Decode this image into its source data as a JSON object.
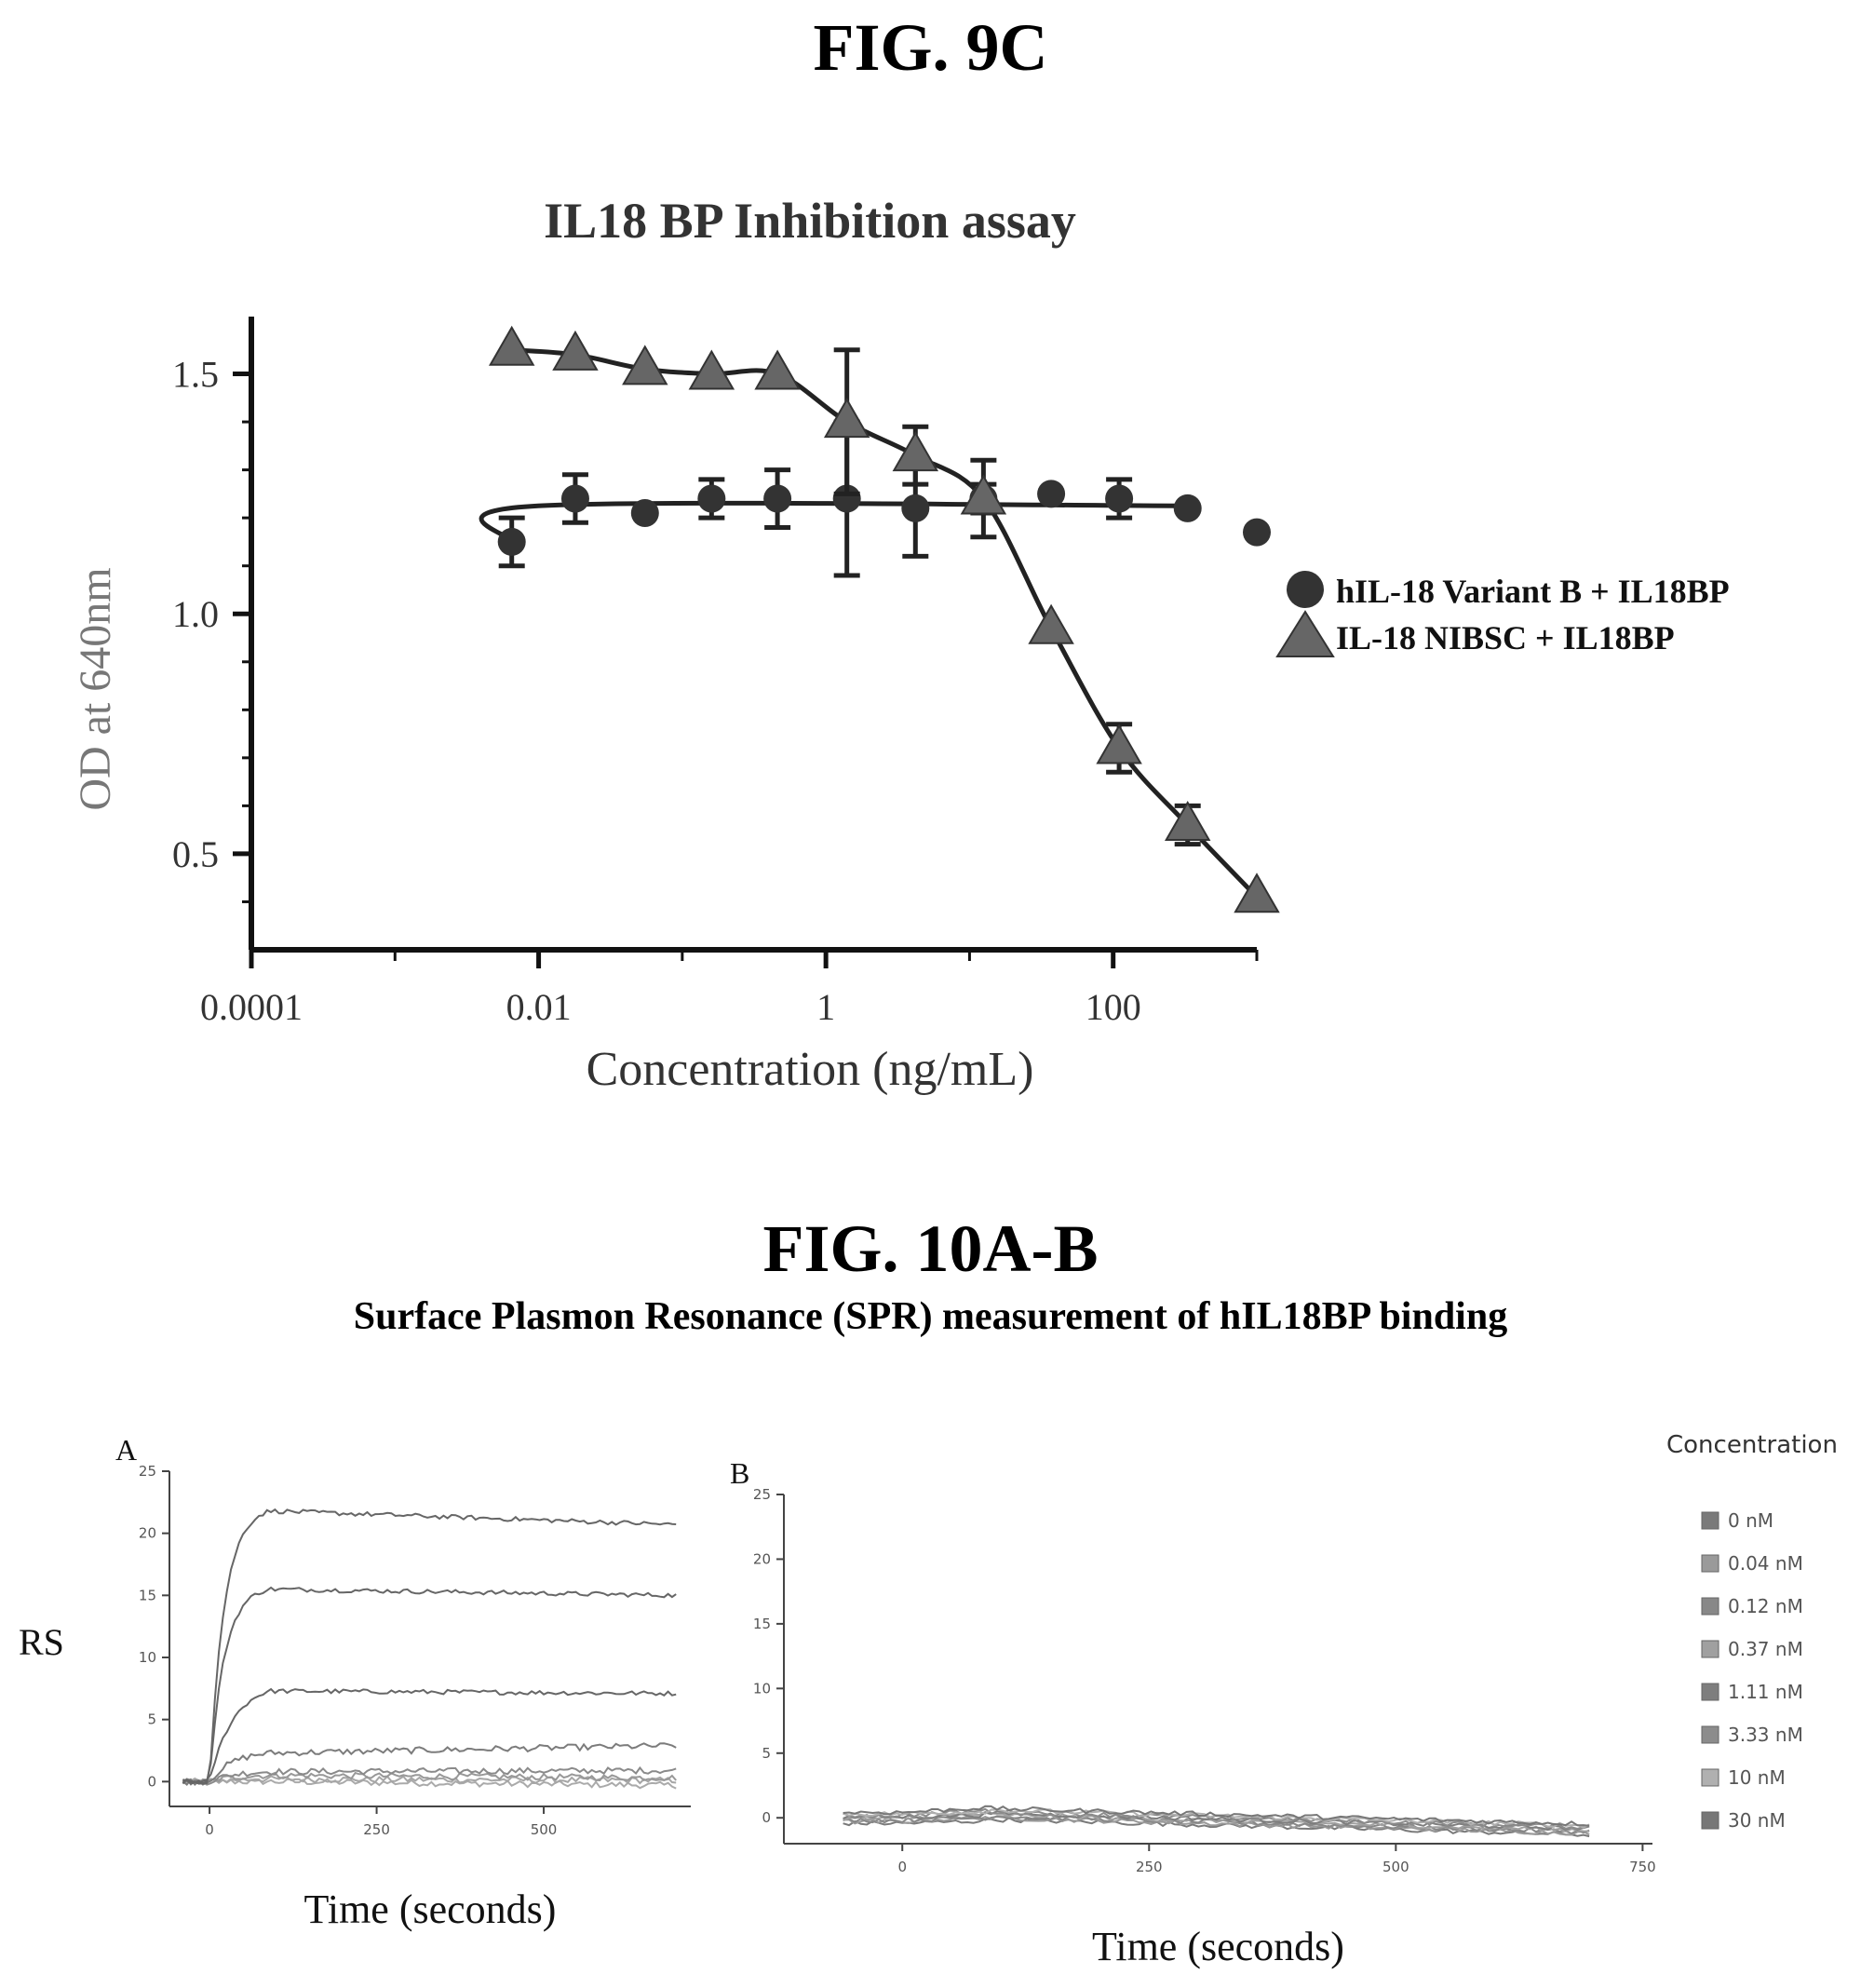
{
  "fig9c": {
    "fig_label": "FIG. 9C"
  },
  "fig10": {
    "fig_label": "FIG. 10A-B",
    "subtitle": "Surface Plasmon Resonance (SPR) measurement of hIL18BP binding"
  },
  "chart_data": [
    {
      "id": "il18bp-inhibition",
      "type": "scatter",
      "title": "IL18 BP Inhibition assay",
      "xlabel": "Concentration (ng/mL)",
      "ylabel": "OD at 640nm",
      "x_scale": "log",
      "xlim": [
        0.0001,
        1000
      ],
      "ylim": [
        0.3,
        1.6
      ],
      "x_ticks": [
        0.0001,
        0.01,
        1,
        100
      ],
      "x_tick_labels": [
        "0.0001",
        "0.01",
        "1",
        "100"
      ],
      "y_ticks": [
        0.5,
        1.0,
        1.5
      ],
      "y_tick_labels": [
        "0.5",
        "1.0",
        "1.5"
      ],
      "legend_position": "right",
      "series": [
        {
          "name": "hIL-18 Variant B   + IL18BP",
          "marker": "circle",
          "color": "#333333",
          "x": [
            0.0065,
            0.018,
            0.055,
            0.16,
            0.46,
            1.4,
            4.2,
            12.5,
            37,
            110,
            330,
            1000
          ],
          "y": [
            1.15,
            1.24,
            1.21,
            1.24,
            1.24,
            1.24,
            1.22,
            1.24,
            1.25,
            1.24,
            1.22,
            1.17
          ],
          "err": [
            0.05,
            0.05,
            0.0,
            0.04,
            0.06,
            0.16,
            0.1,
            0.03,
            0.0,
            0.04,
            0.0,
            0.0
          ]
        },
        {
          "name": "IL-18 NIBSC + IL18BP",
          "marker": "triangle",
          "color": "#666666",
          "x": [
            0.0065,
            0.018,
            0.055,
            0.16,
            0.46,
            1.4,
            4.2,
            12.5,
            37,
            110,
            330,
            1000
          ],
          "y": [
            1.55,
            1.54,
            1.51,
            1.5,
            1.5,
            1.4,
            1.33,
            1.24,
            0.97,
            0.72,
            0.56,
            0.41
          ],
          "err": [
            0.0,
            0.0,
            0.0,
            0.0,
            0.0,
            0.15,
            0.06,
            0.08,
            0.0,
            0.05,
            0.04,
            0.0
          ]
        }
      ]
    },
    {
      "id": "spr-a",
      "type": "line",
      "panel_label": "A",
      "ylabel": "RS",
      "xlabel": "Time (seconds)",
      "xlim": [
        -60,
        720
      ],
      "ylim": [
        -2,
        25
      ],
      "x_ticks": [
        0,
        250,
        500
      ],
      "x_tick_labels": [
        "0",
        "250",
        "500"
      ],
      "y_ticks": [
        0,
        5,
        10,
        15,
        20,
        25
      ],
      "y_tick_labels": [
        "0",
        "5",
        "10",
        "15",
        "20",
        "25"
      ],
      "series": [
        {
          "name": "0 nM",
          "peak": 0.0,
          "end": -0.3
        },
        {
          "name": "0.04 nM",
          "peak": 0.2,
          "end": 0.1
        },
        {
          "name": "0.12 nM",
          "peak": 0.5,
          "end": 0.3
        },
        {
          "name": "0.37 nM",
          "peak": 0.8,
          "end": 0.9
        },
        {
          "name": "1.11 nM",
          "peak": 2.3,
          "end": 2.9
        },
        {
          "name": "3.33 nM",
          "peak": 7.3,
          "end": 7.1
        },
        {
          "name": "10 nM",
          "peak": 15.5,
          "end": 15.0
        },
        {
          "name": "30 nM",
          "peak": 21.8,
          "end": 20.7
        }
      ]
    },
    {
      "id": "spr-b",
      "type": "line",
      "panel_label": "B",
      "xlabel": "Time (seconds)",
      "xlim": [
        -120,
        760
      ],
      "ylim": [
        -2,
        25
      ],
      "x_ticks": [
        0,
        250,
        500,
        750
      ],
      "x_tick_labels": [
        "0",
        "250",
        "500",
        "750"
      ],
      "y_ticks": [
        0,
        5,
        10,
        15,
        20,
        25
      ],
      "y_tick_labels": [
        "0",
        "5",
        "10",
        "15",
        "20",
        "25"
      ],
      "legend_title": "Concentration",
      "series": [
        {
          "name": "0 nM",
          "color": "#7a7a7a"
        },
        {
          "name": "0.04 nM",
          "color": "#9a9a9a"
        },
        {
          "name": "0.12 nM",
          "color": "#888888"
        },
        {
          "name": "0.37 nM",
          "color": "#a0a0a0"
        },
        {
          "name": "1.11 nM",
          "color": "#7e7e7e"
        },
        {
          "name": "3.33 nM",
          "color": "#8c8c8c"
        },
        {
          "name": "10 nM",
          "color": "#b0b0b0"
        },
        {
          "name": "30 nM",
          "color": "#777777"
        }
      ]
    }
  ]
}
